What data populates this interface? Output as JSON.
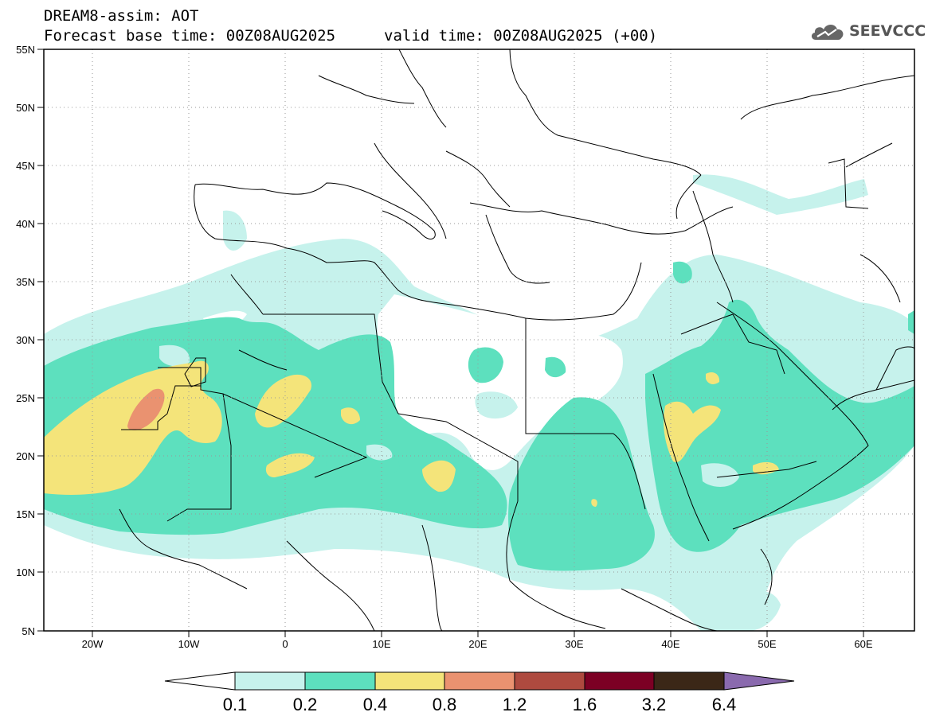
{
  "header": {
    "model_line": "DREAM8-assim: AOT",
    "base_line": "Forecast base time: 00Z08AUG2025",
    "valid_line": "valid time: 00Z08AUG2025 (+00)"
  },
  "logo": {
    "text": "SEEVCCC",
    "icon": "cloud-icon"
  },
  "map": {
    "lat_labels": [
      "55N",
      "50N",
      "45N",
      "40N",
      "35N",
      "30N",
      "25N",
      "20N",
      "15N",
      "10N",
      "5N"
    ],
    "lon_labels": [
      "20W",
      "10W",
      "0",
      "10E",
      "20E",
      "30E",
      "40E",
      "50E",
      "60E"
    ],
    "lon_range": [
      -25,
      65
    ],
    "lat_range": [
      5,
      55
    ]
  },
  "colorbar": {
    "labels": [
      "0.1",
      "0.2",
      "0.4",
      "0.8",
      "1.2",
      "1.6",
      "3.2",
      "6.4"
    ],
    "colors": [
      "#ffffff",
      "#c6f2ec",
      "#5de0be",
      "#f4e47a",
      "#ea9270",
      "#ae4a3f",
      "#7c0024",
      "#3b2717",
      "#8a6aae"
    ]
  }
}
